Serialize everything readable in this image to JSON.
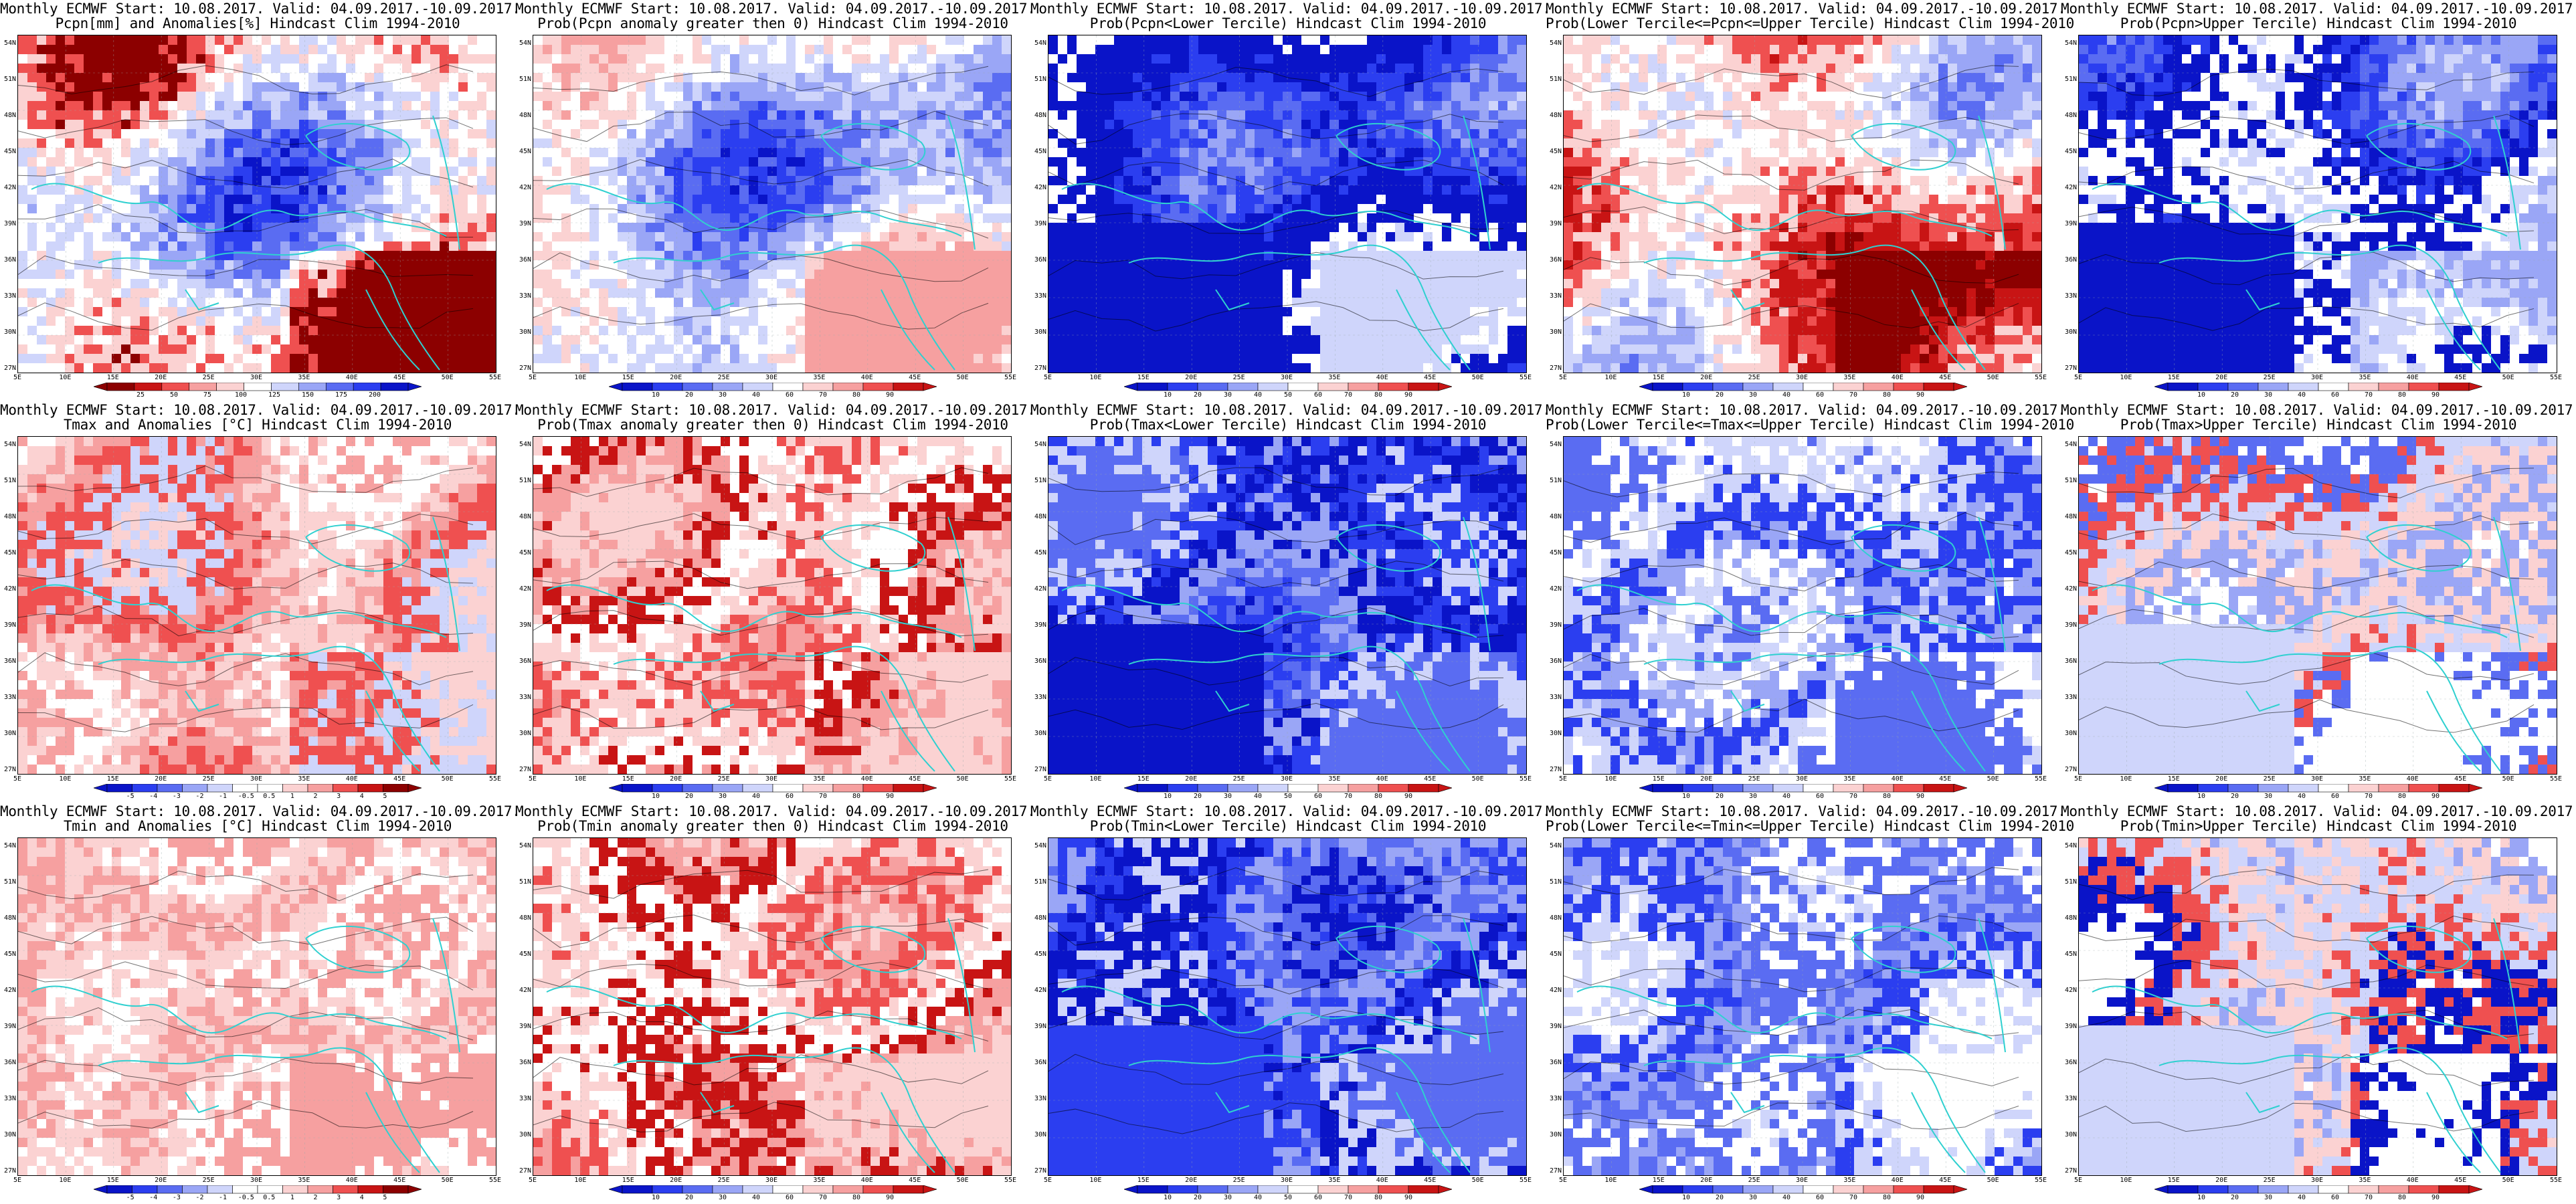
{
  "colors": {
    "dark_blue": "#0a14c8",
    "blue": "#2b3ef0",
    "mid_blue": "#5a6cf2",
    "light_blue": "#9aa6f6",
    "pale_blue": "#cfd5fb",
    "white": "#ffffff",
    "pale_red": "#fbd2d2",
    "light_red": "#f6a0a0",
    "red": "#ef5050",
    "dark_red": "#c81414",
    "darkest_red": "#8c0000",
    "coast": "#2fd0d0",
    "contour": "#000000"
  },
  "lat_labels": [
    "54N",
    "51N",
    "48N",
    "45N",
    "42N",
    "39N",
    "36N",
    "33N",
    "30N",
    "27N"
  ],
  "lon_labels": [
    "5E",
    "10E",
    "15E",
    "20E",
    "25E",
    "30E",
    "35E",
    "40E",
    "45E",
    "50E",
    "55E"
  ],
  "panels": [
    {
      "row": 0,
      "col": 0,
      "title1": "Monthly ECMWF Start: 10.08.2017. Valid: 04.09.2017.-10.09.2017.",
      "title2": "Pcpn[mm] and Anomalies[%] Hindcast Clim 1994-2010",
      "cbar": [
        "25",
        "50",
        "75",
        "100",
        "125",
        "150",
        "175",
        "200"
      ],
      "scheme": "pcpn_anom"
    },
    {
      "row": 0,
      "col": 1,
      "title1": "Monthly ECMWF Start: 10.08.2017. Valid: 04.09.2017.-10.09.2017.",
      "title2": "Prob(Pcpn anomaly greater then 0) Hindcast Clim 1994-2010",
      "cbar": [
        "10",
        "20",
        "30",
        "40",
        "60",
        "70",
        "80",
        "90"
      ],
      "scheme": "prob_pcpn_pos"
    },
    {
      "row": 0,
      "col": 2,
      "title1": "Monthly ECMWF Start: 10.08.2017. Valid: 04.09.2017.-10.09.2017.",
      "title2": "Prob(Pcpn<Lower Tercile) Hindcast Clim 1994-2010",
      "cbar": [
        "10",
        "20",
        "30",
        "40",
        "50",
        "60",
        "70",
        "80",
        "90"
      ],
      "scheme": "prob_pcpn_low"
    },
    {
      "row": 0,
      "col": 3,
      "title1": "Monthly ECMWF Start: 10.08.2017. Valid: 04.09.2017.-10.09.2017.",
      "title2": "Prob(Lower Tercile<=Pcpn<=Upper Tercile) Hindcast Clim 1994-2010",
      "cbar": [
        "10",
        "20",
        "30",
        "40",
        "60",
        "70",
        "80",
        "90"
      ],
      "scheme": "prob_pcpn_mid"
    },
    {
      "row": 0,
      "col": 4,
      "title1": "Monthly ECMWF Start: 10.08.2017. Valid: 04.09.2017.-10.09.2017.",
      "title2": "Prob(Pcpn>Upper Tercile) Hindcast Clim 1994-2010",
      "cbar": [
        "10",
        "20",
        "30",
        "40",
        "60",
        "70",
        "80",
        "90"
      ],
      "scheme": "prob_pcpn_up"
    },
    {
      "row": 1,
      "col": 0,
      "title1": "Monthly ECMWF Start: 10.08.2017. Valid: 04.09.2017.-10.09.2017.",
      "title2": "Tmax and Anomalies [°C] Hindcast Clim 1994-2010",
      "cbar": [
        "-5",
        "-4",
        "-3",
        "-2",
        "-1",
        "-0.5",
        "0.5",
        "1",
        "2",
        "3",
        "4",
        "5"
      ],
      "scheme": "tmax_anom"
    },
    {
      "row": 1,
      "col": 1,
      "title1": "Monthly ECMWF Start: 10.08.2017. Valid: 04.09.2017.-10.09.2017.",
      "title2": "Prob(Tmax anomaly greater then 0) Hindcast Clim 1994-2010",
      "cbar": [
        "10",
        "20",
        "30",
        "40",
        "60",
        "70",
        "80",
        "90"
      ],
      "scheme": "prob_tmax_pos"
    },
    {
      "row": 1,
      "col": 2,
      "title1": "Monthly ECMWF Start: 10.08.2017. Valid: 04.09.2017.-10.09.2017.",
      "title2": "Prob(Tmax<Lower Tercile) Hindcast Clim 1994-2010",
      "cbar": [
        "10",
        "20",
        "30",
        "40",
        "50",
        "60",
        "70",
        "80",
        "90"
      ],
      "scheme": "prob_tmax_low"
    },
    {
      "row": 1,
      "col": 3,
      "title1": "Monthly ECMWF Start: 10.08.2017. Valid: 04.09.2017.-10.09.2017.",
      "title2": "Prob(Lower Tercile<=Tmax<=Upper Tercile) Hindcast Clim 1994-2010",
      "cbar": [
        "10",
        "20",
        "30",
        "40",
        "60",
        "70",
        "80",
        "90"
      ],
      "scheme": "prob_tmax_mid"
    },
    {
      "row": 1,
      "col": 4,
      "title1": "Monthly ECMWF Start: 10.08.2017. Valid: 04.09.2017.-10.09.2017.",
      "title2": "Prob(Tmax>Upper Tercile) Hindcast Clim 1994-2010",
      "cbar": [
        "10",
        "20",
        "30",
        "40",
        "60",
        "70",
        "80",
        "90"
      ],
      "scheme": "prob_tmax_up"
    },
    {
      "row": 2,
      "col": 0,
      "title1": "Monthly ECMWF Start: 10.08.2017. Valid: 04.09.2017.-10.09.2017.",
      "title2": "Tmin and Anomalies [°C] Hindcast Clim 1994-2010",
      "cbar": [
        "-5",
        "-4",
        "-3",
        "-2",
        "-1",
        "-0.5",
        "0.5",
        "1",
        "2",
        "3",
        "4",
        "5"
      ],
      "scheme": "tmin_anom"
    },
    {
      "row": 2,
      "col": 1,
      "title1": "Monthly ECMWF Start: 10.08.2017. Valid: 04.09.2017.-10.09.2017.",
      "title2": "Prob(Tmin anomaly greater then 0) Hindcast Clim 1994-2010",
      "cbar": [
        "10",
        "20",
        "30",
        "40",
        "60",
        "70",
        "80",
        "90"
      ],
      "scheme": "prob_tmin_pos"
    },
    {
      "row": 2,
      "col": 2,
      "title1": "Monthly ECMWF Start: 10.08.2017. Valid: 04.09.2017.-10.09.2017.",
      "title2": "Prob(Tmin<Lower Tercile) Hindcast Clim 1994-2010",
      "cbar": [
        "10",
        "20",
        "30",
        "40",
        "50",
        "60",
        "70",
        "80",
        "90"
      ],
      "scheme": "prob_tmin_low"
    },
    {
      "row": 2,
      "col": 3,
      "title1": "Monthly ECMWF Start: 10.08.2017. Valid: 04.09.2017.-10.09.2017.",
      "title2": "Prob(Lower Tercile<=Tmin<=Upper Tercile) Hindcast Clim 1994-2010",
      "cbar": [
        "10",
        "20",
        "30",
        "40",
        "60",
        "70",
        "80",
        "90"
      ],
      "scheme": "prob_tmin_mid"
    },
    {
      "row": 2,
      "col": 4,
      "title1": "Monthly ECMWF Start: 10.08.2017. Valid: 04.09.2017.-10.09.2017.",
      "title2": "Prob(Tmin>Upper Tercile) Hindcast Clim 1994-2010",
      "cbar": [
        "10",
        "20",
        "30",
        "40",
        "60",
        "70",
        "80",
        "90"
      ],
      "scheme": "prob_tmin_up"
    }
  ]
}
